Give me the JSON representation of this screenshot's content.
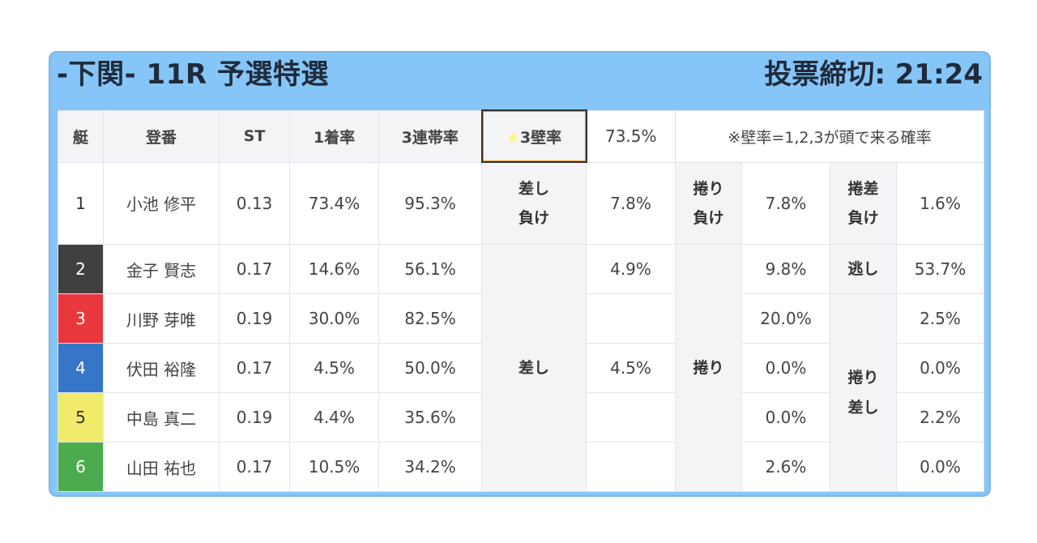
{
  "header": {
    "title": "-下関- 11R 予選特選",
    "deadline": "投票締切: 21:24"
  },
  "table": {
    "headers": {
      "boat": "艇",
      "registration": "登番",
      "st": "ST",
      "win_rate": "1着率",
      "trio_rate": "3連帯率",
      "wall_label_star": "★",
      "wall_label": "3壁率",
      "wall_value": "73.5%",
      "note": "※壁率=1,2,3が頭で来る確率"
    },
    "rows": [
      {
        "boat": "1",
        "name": "小池 修平",
        "st": "0.13",
        "win": "73.4%",
        "trio": "95.3%",
        "boat_color": "#ffffff",
        "boat_text": "#333333"
      },
      {
        "boat": "2",
        "name": "金子 賢志",
        "st": "0.17",
        "win": "14.6%",
        "trio": "56.1%",
        "boat_color": "#404040",
        "boat_text": "#ffffff"
      },
      {
        "boat": "3",
        "name": "川野 芽唯",
        "st": "0.19",
        "win": "30.0%",
        "trio": "82.5%",
        "boat_color": "#e8383d",
        "boat_text": "#ffffff"
      },
      {
        "boat": "4",
        "name": "伏田 裕隆",
        "st": "0.17",
        "win": "4.5%",
        "trio": "50.0%",
        "boat_color": "#3576c8",
        "boat_text": "#ffffff"
      },
      {
        "boat": "5",
        "name": "中島 真二",
        "st": "0.19",
        "win": "4.4%",
        "trio": "35.6%",
        "boat_color": "#f0eb6a",
        "boat_text": "#333333"
      },
      {
        "boat": "6",
        "name": "山田 祐也",
        "st": "0.17",
        "win": "10.5%",
        "trio": "34.2%",
        "boat_color": "#4cab4c",
        "boat_text": "#ffffff"
      }
    ],
    "patterns": {
      "sashi_make_1": "差し",
      "sashi_make_2": "負け",
      "sashi_make_value": "7.8%",
      "makuri_make_1": "捲り",
      "makuri_make_2": "負け",
      "makuri_make_value": "7.8%",
      "makurisashi_make_1": "捲差",
      "makurisashi_make_2": "負け",
      "makurisashi_make_value": "1.6%",
      "sashi": "差し",
      "sashi_values": [
        "4.9%",
        "",
        "4.5%",
        "",
        ""
      ],
      "makuri": "捲り",
      "makuri_values": [
        "9.8%",
        "20.0%",
        "0.0%",
        "0.0%",
        "2.6%"
      ],
      "nige": "逃し",
      "nige_value": "53.7%",
      "makurisashi_1": "捲り",
      "makurisashi_2": "差し",
      "makurisashi_values": [
        "2.5%",
        "0.0%",
        "2.2%",
        "0.0%"
      ]
    }
  }
}
